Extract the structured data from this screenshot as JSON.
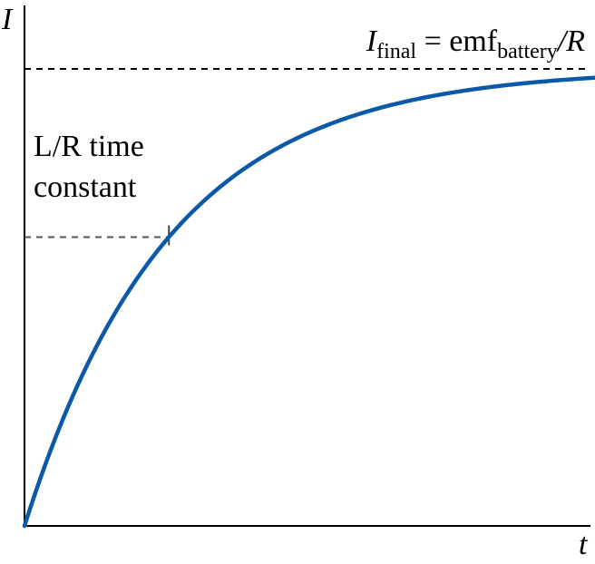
{
  "chart_data": {
    "type": "line",
    "title": "",
    "xlabel": "t",
    "ylabel": "I",
    "grid": false,
    "asymptote": {
      "y": 1.0,
      "label": {
        "symbol": "I",
        "sub": "final",
        "equals": " = emf",
        "sub2": "battery",
        "tail": "/R"
      }
    },
    "time_constant": {
      "x": 1,
      "y": 0.632,
      "label_line1": "L/R time",
      "label_line2": "constant"
    },
    "curve_function": "I = I_final * (1 - exp(-t / tau))",
    "xlim": [
      0,
      3.95
    ],
    "ylim": [
      0,
      1.0
    ],
    "series": [
      {
        "color": "#0b59a8",
        "x": [
          0,
          0.25,
          0.5,
          0.75,
          1,
          1.25,
          1.5,
          1.75,
          2,
          2.25,
          2.5,
          2.75,
          3,
          3.25,
          3.5,
          3.75,
          3.95
        ],
        "y": [
          0,
          0.221,
          0.393,
          0.528,
          0.632,
          0.713,
          0.777,
          0.826,
          0.865,
          0.895,
          0.918,
          0.936,
          0.95,
          0.961,
          0.97,
          0.976,
          0.98
        ]
      }
    ]
  }
}
